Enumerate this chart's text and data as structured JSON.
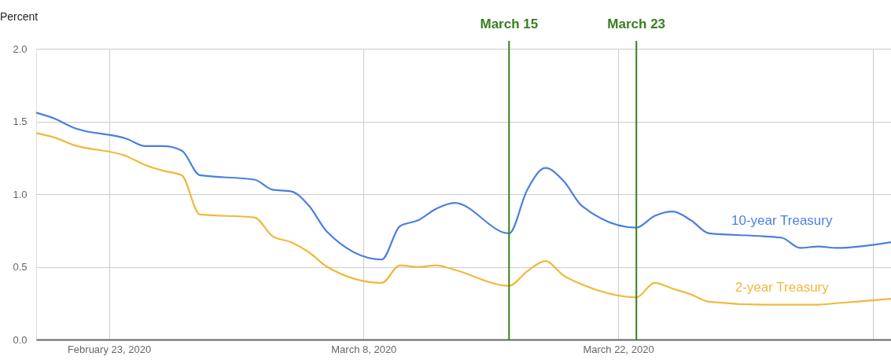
{
  "chart_data": {
    "type": "line",
    "ylabel": "Percent",
    "x": [
      "2020-02-19",
      "2020-02-20",
      "2020-02-21",
      "2020-02-24",
      "2020-02-25",
      "2020-02-26",
      "2020-02-27",
      "2020-02-28",
      "2020-03-02",
      "2020-03-03",
      "2020-03-04",
      "2020-03-05",
      "2020-03-06",
      "2020-03-09",
      "2020-03-10",
      "2020-03-11",
      "2020-03-12",
      "2020-03-13",
      "2020-03-16",
      "2020-03-17",
      "2020-03-18",
      "2020-03-19",
      "2020-03-20",
      "2020-03-23",
      "2020-03-24",
      "2020-03-25",
      "2020-03-26",
      "2020-03-27",
      "2020-03-30",
      "2020-03-31",
      "2020-04-01",
      "2020-04-02",
      "2020-04-03",
      "2020-04-06"
    ],
    "series": [
      {
        "name": "10-year Treasury",
        "color": "#4a7fe0",
        "values": [
          1.56,
          1.52,
          1.46,
          1.38,
          1.33,
          1.33,
          1.3,
          1.13,
          1.1,
          1.03,
          1.02,
          0.92,
          0.74,
          0.55,
          0.78,
          0.82,
          0.9,
          0.94,
          0.73,
          1.03,
          1.18,
          1.09,
          0.92,
          0.77,
          0.85,
          0.88,
          0.82,
          0.73,
          0.71,
          0.7,
          0.63,
          0.64,
          0.63,
          0.67
        ]
      },
      {
        "name": "2-year Treasury",
        "color": "#f0b93a",
        "values": [
          1.42,
          1.39,
          1.34,
          1.26,
          1.2,
          1.16,
          1.13,
          0.86,
          0.84,
          0.71,
          0.67,
          0.6,
          0.5,
          0.39,
          0.51,
          0.5,
          0.51,
          0.48,
          0.37,
          0.47,
          0.54,
          0.44,
          0.38,
          0.29,
          0.39,
          0.35,
          0.31,
          0.26,
          0.24,
          0.24,
          0.24,
          0.24,
          0.25,
          0.28
        ]
      }
    ],
    "xlim": [
      "2020-02-19",
      "2020-04-06"
    ],
    "xticks": [
      {
        "value": "2020-02-23",
        "label": "February 23, 2020"
      },
      {
        "value": "2020-03-08",
        "label": "March 8, 2020"
      },
      {
        "value": "2020-03-22",
        "label": "March 22, 2020"
      },
      {
        "value": "2020-04-05",
        "label": null
      }
    ],
    "ylim": [
      0,
      2
    ],
    "yticks": [
      {
        "value": 0,
        "label": "0.0"
      },
      {
        "value": 0.5,
        "label": "0.5"
      },
      {
        "value": 1,
        "label": "1.0"
      },
      {
        "value": 1.5,
        "label": "1.5"
      },
      {
        "value": 2,
        "label": "2.0"
      }
    ],
    "ref_lines": [
      {
        "axis": "x",
        "value": "2020-03-16",
        "label": "March 15",
        "color": "#3a7d22"
      },
      {
        "axis": "x",
        "value": "2020-03-23",
        "label": "March 23",
        "color": "#3a7d22"
      }
    ],
    "grid": true,
    "marker": "none",
    "line_style": "solid"
  }
}
